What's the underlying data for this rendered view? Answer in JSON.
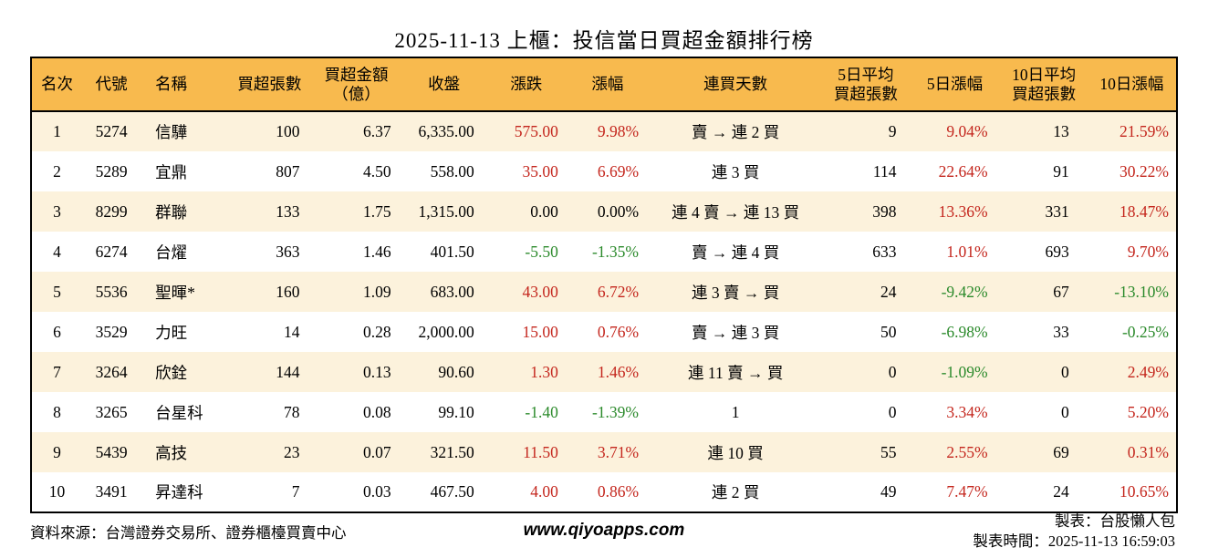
{
  "title": "2025-11-13 上櫃：投信當日買超金額排行榜",
  "colors": {
    "up": "#C4261D",
    "down": "#2B8A2B",
    "header_bg": "#F8BA4E",
    "row_stripe": "#FCF2DC",
    "border": "#000000"
  },
  "chart_data": {
    "type": "table",
    "columns": [
      {
        "key": "rank",
        "label": "名次"
      },
      {
        "key": "code",
        "label": "代號"
      },
      {
        "key": "name",
        "label": "名稱"
      },
      {
        "key": "volume",
        "label": "買超張數"
      },
      {
        "key": "amount",
        "label": "買超金額（億）",
        "lines": [
          "買超金額",
          "（億）"
        ]
      },
      {
        "key": "close",
        "label": "收盤"
      },
      {
        "key": "change",
        "label": "漲跌"
      },
      {
        "key": "change_pct",
        "label": "漲幅"
      },
      {
        "key": "consecutive",
        "label": "連買天數"
      },
      {
        "key": "avg5",
        "label": "5日平均買超張數",
        "lines": [
          "5日平均",
          "買超張數"
        ]
      },
      {
        "key": "chg5",
        "label": "5日漲幅"
      },
      {
        "key": "avg10",
        "label": "10日平均買超張數",
        "lines": [
          "10日平均",
          "買超張數"
        ]
      },
      {
        "key": "chg10",
        "label": "10日漲幅"
      }
    ],
    "rows": [
      {
        "rank": "1",
        "code": "5274",
        "name": "信驊",
        "volume": "100",
        "amount": "6.37",
        "close": "6,335.00",
        "change": "575.00",
        "change_trend": "up",
        "change_pct": "9.98%",
        "change_pct_trend": "up",
        "consecutive": "賣 → 連 2 買",
        "avg5": "9",
        "chg5": "9.04%",
        "chg5_trend": "up",
        "avg10": "13",
        "chg10": "21.59%",
        "chg10_trend": "up"
      },
      {
        "rank": "2",
        "code": "5289",
        "name": "宜鼎",
        "volume": "807",
        "amount": "4.50",
        "close": "558.00",
        "change": "35.00",
        "change_trend": "up",
        "change_pct": "6.69%",
        "change_pct_trend": "up",
        "consecutive": "連 3 買",
        "avg5": "114",
        "chg5": "22.64%",
        "chg5_trend": "up",
        "avg10": "91",
        "chg10": "30.22%",
        "chg10_trend": "up"
      },
      {
        "rank": "3",
        "code": "8299",
        "name": "群聯",
        "volume": "133",
        "amount": "1.75",
        "close": "1,315.00",
        "change": "0.00",
        "change_trend": "flat",
        "change_pct": "0.00%",
        "change_pct_trend": "flat",
        "consecutive": "連 4 賣 → 連 13 買",
        "avg5": "398",
        "chg5": "13.36%",
        "chg5_trend": "up",
        "avg10": "331",
        "chg10": "18.47%",
        "chg10_trend": "up"
      },
      {
        "rank": "4",
        "code": "6274",
        "name": "台燿",
        "volume": "363",
        "amount": "1.46",
        "close": "401.50",
        "change": "-5.50",
        "change_trend": "down",
        "change_pct": "-1.35%",
        "change_pct_trend": "down",
        "consecutive": "賣 → 連 4 買",
        "avg5": "633",
        "chg5": "1.01%",
        "chg5_trend": "up",
        "avg10": "693",
        "chg10": "9.70%",
        "chg10_trend": "up"
      },
      {
        "rank": "5",
        "code": "5536",
        "name": "聖暉*",
        "volume": "160",
        "amount": "1.09",
        "close": "683.00",
        "change": "43.00",
        "change_trend": "up",
        "change_pct": "6.72%",
        "change_pct_trend": "up",
        "consecutive": "連 3 賣 → 買",
        "avg5": "24",
        "chg5": "-9.42%",
        "chg5_trend": "down",
        "avg10": "67",
        "chg10": "-13.10%",
        "chg10_trend": "down"
      },
      {
        "rank": "6",
        "code": "3529",
        "name": "力旺",
        "volume": "14",
        "amount": "0.28",
        "close": "2,000.00",
        "change": "15.00",
        "change_trend": "up",
        "change_pct": "0.76%",
        "change_pct_trend": "up",
        "consecutive": "賣 → 連 3 買",
        "avg5": "50",
        "chg5": "-6.98%",
        "chg5_trend": "down",
        "avg10": "33",
        "chg10": "-0.25%",
        "chg10_trend": "down"
      },
      {
        "rank": "7",
        "code": "3264",
        "name": "欣銓",
        "volume": "144",
        "amount": "0.13",
        "close": "90.60",
        "change": "1.30",
        "change_trend": "up",
        "change_pct": "1.46%",
        "change_pct_trend": "up",
        "consecutive": "連 11 賣 → 買",
        "avg5": "0",
        "chg5": "-1.09%",
        "chg5_trend": "down",
        "avg10": "0",
        "chg10": "2.49%",
        "chg10_trend": "up"
      },
      {
        "rank": "8",
        "code": "3265",
        "name": "台星科",
        "volume": "78",
        "amount": "0.08",
        "close": "99.10",
        "change": "-1.40",
        "change_trend": "down",
        "change_pct": "-1.39%",
        "change_pct_trend": "down",
        "consecutive": "1",
        "avg5": "0",
        "chg5": "3.34%",
        "chg5_trend": "up",
        "avg10": "0",
        "chg10": "5.20%",
        "chg10_trend": "up"
      },
      {
        "rank": "9",
        "code": "5439",
        "name": "高技",
        "volume": "23",
        "amount": "0.07",
        "close": "321.50",
        "change": "11.50",
        "change_trend": "up",
        "change_pct": "3.71%",
        "change_pct_trend": "up",
        "consecutive": "連 10 買",
        "avg5": "55",
        "chg5": "2.55%",
        "chg5_trend": "up",
        "avg10": "69",
        "chg10": "0.31%",
        "chg10_trend": "up"
      },
      {
        "rank": "10",
        "code": "3491",
        "name": "昇達科",
        "volume": "7",
        "amount": "0.03",
        "close": "467.50",
        "change": "4.00",
        "change_trend": "up",
        "change_pct": "0.86%",
        "change_pct_trend": "up",
        "consecutive": "連 2 買",
        "avg5": "49",
        "chg5": "7.47%",
        "chg5_trend": "up",
        "avg10": "24",
        "chg10": "10.65%",
        "chg10_trend": "up"
      }
    ]
  },
  "footer": {
    "source": "資料來源：台灣證券交易所、證券櫃檯買賣中心",
    "website": "www.qiyoapps.com",
    "maker": "製表：台股懶人包",
    "timestamp": "製表時間：2025-11-13 16:59:03"
  }
}
